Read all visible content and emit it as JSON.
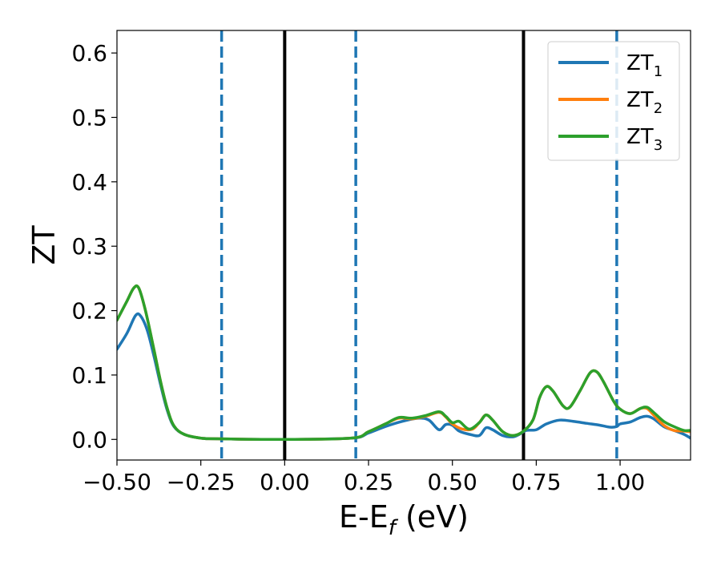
{
  "chart_data": {
    "type": "line",
    "xlabel": "E-E",
    "xlabel_subscript": "f",
    "xlabel_unit": " (eV)",
    "ylabel": "ZT",
    "xlim": [
      -0.5,
      1.21
    ],
    "ylim": [
      -0.032,
      0.635
    ],
    "x_ticks": [
      -0.5,
      -0.25,
      0.0,
      0.25,
      0.5,
      0.75,
      1.0
    ],
    "x_tick_labels": [
      "−0.50",
      "−0.25",
      "0.00",
      "0.25",
      "0.50",
      "0.75",
      "1.00"
    ],
    "y_ticks": [
      0.0,
      0.1,
      0.2,
      0.3,
      0.4,
      0.5,
      0.6
    ],
    "y_tick_labels": [
      "0.0",
      "0.1",
      "0.2",
      "0.3",
      "0.4",
      "0.5",
      "0.6"
    ],
    "grid": false,
    "legend_position": "top-right",
    "vertical_lines": [
      {
        "x": -0.188,
        "style": "dashed",
        "color": "#1f77b4"
      },
      {
        "x": 0.0,
        "style": "solid",
        "color": "#000000"
      },
      {
        "x": 0.212,
        "style": "dashed",
        "color": "#1f77b4"
      },
      {
        "x": 0.712,
        "style": "solid",
        "color": "#000000"
      },
      {
        "x": 0.99,
        "style": "dashed",
        "color": "#1f77b4"
      }
    ],
    "series": [
      {
        "name": "ZT",
        "subscript": "1",
        "color": "#1f77b4",
        "points": [
          [
            -0.5,
            0.14
          ],
          [
            -0.47,
            0.165
          ],
          [
            -0.445,
            0.192
          ],
          [
            -0.43,
            0.192
          ],
          [
            -0.41,
            0.17
          ],
          [
            -0.39,
            0.13
          ],
          [
            -0.37,
            0.085
          ],
          [
            -0.35,
            0.045
          ],
          [
            -0.33,
            0.02
          ],
          [
            -0.3,
            0.008
          ],
          [
            -0.25,
            0.002
          ],
          [
            -0.2,
            0.001
          ],
          [
            0.0,
            0.0
          ],
          [
            0.2,
            0.002
          ],
          [
            0.25,
            0.01
          ],
          [
            0.3,
            0.02
          ],
          [
            0.35,
            0.028
          ],
          [
            0.4,
            0.033
          ],
          [
            0.43,
            0.03
          ],
          [
            0.46,
            0.015
          ],
          [
            0.48,
            0.023
          ],
          [
            0.5,
            0.022
          ],
          [
            0.52,
            0.013
          ],
          [
            0.55,
            0.008
          ],
          [
            0.58,
            0.006
          ],
          [
            0.6,
            0.018
          ],
          [
            0.62,
            0.015
          ],
          [
            0.65,
            0.006
          ],
          [
            0.68,
            0.004
          ],
          [
            0.7,
            0.008
          ],
          [
            0.72,
            0.014
          ],
          [
            0.75,
            0.015
          ],
          [
            0.78,
            0.024
          ],
          [
            0.82,
            0.03
          ],
          [
            0.86,
            0.028
          ],
          [
            0.9,
            0.025
          ],
          [
            0.94,
            0.022
          ],
          [
            0.97,
            0.019
          ],
          [
            0.99,
            0.02
          ],
          [
            1.0,
            0.024
          ],
          [
            1.03,
            0.027
          ],
          [
            1.06,
            0.034
          ],
          [
            1.08,
            0.036
          ],
          [
            1.1,
            0.032
          ],
          [
            1.13,
            0.02
          ],
          [
            1.16,
            0.014
          ],
          [
            1.19,
            0.008
          ],
          [
            1.21,
            0.002
          ]
        ]
      },
      {
        "name": "ZT",
        "subscript": "2",
        "color": "#ff7f0e",
        "points": [
          [
            -0.5,
            0.185
          ],
          [
            -0.47,
            0.215
          ],
          [
            -0.45,
            0.235
          ],
          [
            -0.435,
            0.235
          ],
          [
            -0.415,
            0.2
          ],
          [
            -0.39,
            0.14
          ],
          [
            -0.37,
            0.09
          ],
          [
            -0.35,
            0.048
          ],
          [
            -0.33,
            0.021
          ],
          [
            -0.3,
            0.008
          ],
          [
            -0.25,
            0.002
          ],
          [
            -0.2,
            0.001
          ],
          [
            0.0,
            0.0
          ],
          [
            0.2,
            0.002
          ],
          [
            0.25,
            0.012
          ],
          [
            0.3,
            0.024
          ],
          [
            0.34,
            0.033
          ],
          [
            0.38,
            0.032
          ],
          [
            0.42,
            0.036
          ],
          [
            0.46,
            0.042
          ],
          [
            0.48,
            0.035
          ],
          [
            0.5,
            0.024
          ],
          [
            0.53,
            0.016
          ],
          [
            0.56,
            0.016
          ],
          [
            0.58,
            0.026
          ],
          [
            0.6,
            0.038
          ],
          [
            0.62,
            0.03
          ],
          [
            0.65,
            0.012
          ],
          [
            0.68,
            0.006
          ],
          [
            0.71,
            0.012
          ],
          [
            0.74,
            0.03
          ],
          [
            0.76,
            0.065
          ],
          [
            0.78,
            0.082
          ],
          [
            0.8,
            0.075
          ],
          [
            0.83,
            0.052
          ],
          [
            0.85,
            0.05
          ],
          [
            0.88,
            0.075
          ],
          [
            0.91,
            0.103
          ],
          [
            0.93,
            0.105
          ],
          [
            0.95,
            0.09
          ],
          [
            0.98,
            0.06
          ],
          [
            1.0,
            0.047
          ],
          [
            1.03,
            0.04
          ],
          [
            1.06,
            0.048
          ],
          [
            1.08,
            0.048
          ],
          [
            1.1,
            0.038
          ],
          [
            1.13,
            0.022
          ],
          [
            1.16,
            0.014
          ],
          [
            1.19,
            0.013
          ],
          [
            1.21,
            0.012
          ]
        ]
      },
      {
        "name": "ZT",
        "subscript": "3",
        "color": "#2ca02c",
        "points": [
          [
            -0.5,
            0.185
          ],
          [
            -0.47,
            0.215
          ],
          [
            -0.45,
            0.235
          ],
          [
            -0.435,
            0.235
          ],
          [
            -0.415,
            0.2
          ],
          [
            -0.39,
            0.14
          ],
          [
            -0.37,
            0.09
          ],
          [
            -0.35,
            0.048
          ],
          [
            -0.33,
            0.021
          ],
          [
            -0.3,
            0.008
          ],
          [
            -0.25,
            0.002
          ],
          [
            -0.2,
            0.001
          ],
          [
            0.0,
            0.0
          ],
          [
            0.2,
            0.002
          ],
          [
            0.25,
            0.012
          ],
          [
            0.3,
            0.024
          ],
          [
            0.34,
            0.034
          ],
          [
            0.38,
            0.033
          ],
          [
            0.42,
            0.037
          ],
          [
            0.46,
            0.043
          ],
          [
            0.48,
            0.036
          ],
          [
            0.5,
            0.026
          ],
          [
            0.52,
            0.028
          ],
          [
            0.55,
            0.016
          ],
          [
            0.58,
            0.026
          ],
          [
            0.6,
            0.038
          ],
          [
            0.62,
            0.03
          ],
          [
            0.65,
            0.012
          ],
          [
            0.68,
            0.006
          ],
          [
            0.71,
            0.012
          ],
          [
            0.74,
            0.03
          ],
          [
            0.76,
            0.065
          ],
          [
            0.78,
            0.082
          ],
          [
            0.8,
            0.075
          ],
          [
            0.83,
            0.052
          ],
          [
            0.85,
            0.05
          ],
          [
            0.88,
            0.075
          ],
          [
            0.91,
            0.103
          ],
          [
            0.93,
            0.105
          ],
          [
            0.95,
            0.09
          ],
          [
            0.98,
            0.06
          ],
          [
            1.0,
            0.047
          ],
          [
            1.03,
            0.04
          ],
          [
            1.06,
            0.048
          ],
          [
            1.08,
            0.05
          ],
          [
            1.1,
            0.042
          ],
          [
            1.13,
            0.028
          ],
          [
            1.16,
            0.02
          ],
          [
            1.19,
            0.014
          ],
          [
            1.21,
            0.014
          ]
        ]
      }
    ]
  }
}
